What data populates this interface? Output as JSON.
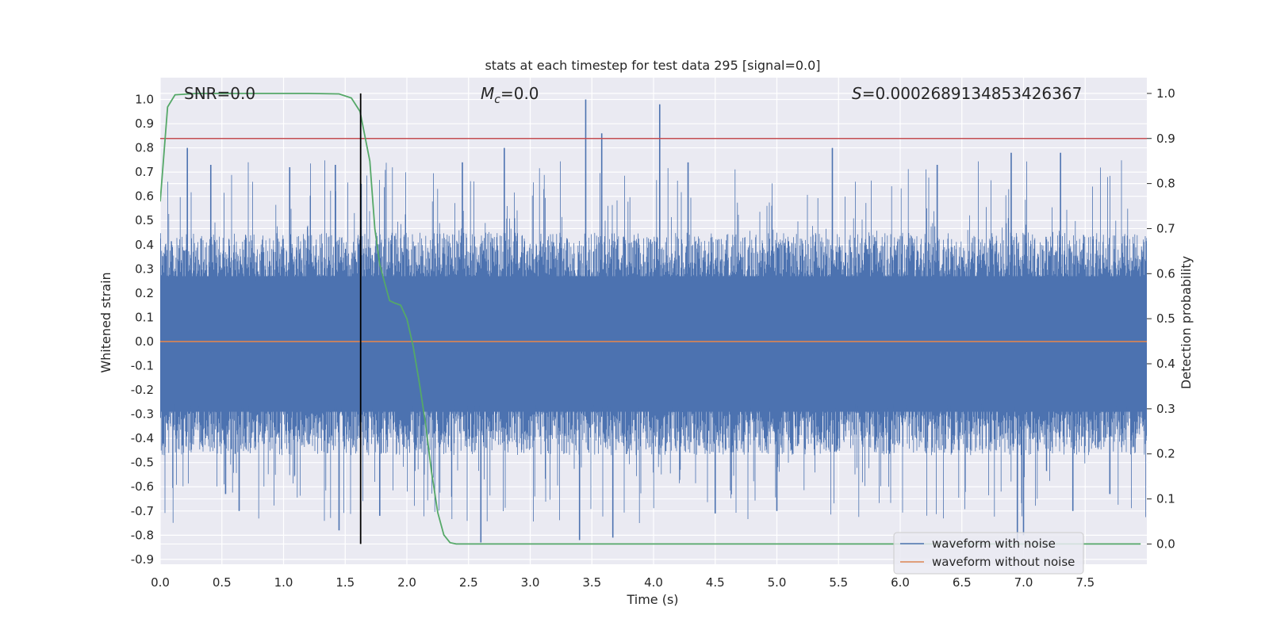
{
  "chart_data": {
    "type": "line",
    "title": "stats at each timestep for test data 295 [signal=0.0]",
    "xlabel": "Time (s)",
    "ylabel": "Whitened strain",
    "y2label": "Detection probability",
    "xlim": [
      0.0,
      8.0
    ],
    "ylim": [
      -0.92,
      1.09
    ],
    "y2lim": [
      -0.045,
      1.035
    ],
    "xticks": [
      "0.0",
      "0.5",
      "1.0",
      "1.5",
      "2.0",
      "2.5",
      "3.0",
      "3.5",
      "4.0",
      "4.5",
      "5.0",
      "5.5",
      "6.0",
      "6.5",
      "7.0",
      "7.5"
    ],
    "yticks": [
      "1.0",
      "0.9",
      "0.8",
      "0.7",
      "0.6",
      "0.5",
      "0.4",
      "0.3",
      "0.2",
      "0.1",
      "0.0",
      "-0.1",
      "-0.2",
      "-0.3",
      "-0.4",
      "-0.5",
      "-0.6",
      "-0.7",
      "-0.8",
      "-0.9"
    ],
    "y2ticks": [
      "1.0",
      "0.9",
      "0.8",
      "0.7",
      "0.6",
      "0.5",
      "0.4",
      "0.3",
      "0.2",
      "0.1",
      "0.0"
    ],
    "annotations": {
      "snr": "SNR=0.0",
      "mc_symbol": "M",
      "mc_sub": "c",
      "mc_value": "=0.0",
      "s_symbol": "S",
      "s_value": "=0.0002689134853426367"
    },
    "threshold_y2": 0.9,
    "detection_time": 1.625,
    "noise_band": {
      "envelope_pos": 0.45,
      "envelope_neg": -0.47,
      "core_pos": 0.27,
      "core_neg": -0.29,
      "max_spike": 1.0,
      "min_spike": -0.83
    },
    "series": [
      {
        "name": "waveform with noise",
        "color": "#4c72b0",
        "axis": "left",
        "note": "dense noise trace, approx. range -0.83 to 1.0"
      },
      {
        "name": "waveform without noise",
        "color": "#dd8452",
        "axis": "left",
        "x": [
          0.0,
          8.0
        ],
        "y": [
          0.0,
          0.0
        ]
      },
      {
        "name": "detection probability",
        "color": "#55a868",
        "axis": "right",
        "x": [
          0.0,
          0.06,
          0.12,
          0.3,
          0.6,
          0.9,
          1.2,
          1.45,
          1.55,
          1.62,
          1.7,
          1.74,
          1.78,
          1.82,
          1.86,
          1.9,
          1.95,
          2.0,
          2.05,
          2.1,
          2.15,
          2.2,
          2.25,
          2.3,
          2.35,
          2.4,
          3.0,
          4.0,
          5.0,
          6.0,
          7.0,
          7.95
        ],
        "y": [
          0.76,
          0.97,
          0.997,
          1.0,
          1.0,
          1.0,
          1.0,
          0.999,
          0.99,
          0.96,
          0.85,
          0.7,
          0.62,
          0.58,
          0.54,
          0.535,
          0.53,
          0.5,
          0.44,
          0.36,
          0.27,
          0.16,
          0.07,
          0.02,
          0.003,
          0.0,
          0.0,
          0.0,
          0.0,
          0.0,
          0.0,
          0.0
        ]
      }
    ],
    "threshold_color": "#c44e52",
    "detection_line_color": "#000000",
    "legend": {
      "placement": "lower-right",
      "items": [
        "waveform with noise",
        "waveform without noise"
      ]
    }
  }
}
